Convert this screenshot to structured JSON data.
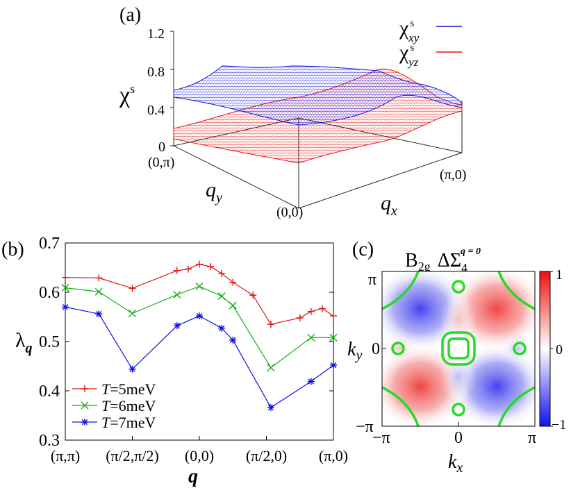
{
  "panel_a": {
    "label": "(a)",
    "z_label": "χ",
    "z_label_sup": "s",
    "z_ticks": [
      "1.2",
      "0.8",
      "0.4",
      "0"
    ],
    "qy_label": "q",
    "qy_sub": "y",
    "qx_label": "q",
    "qx_sub": "x",
    "corner_0pi": "(0,π)",
    "corner_00": "(0,0)",
    "corner_pi0": "(π,0)",
    "legend": [
      {
        "sym": "χ",
        "sup": "s",
        "sub": "xy",
        "color": "#1010e8"
      },
      {
        "sym": "χ",
        "sup": "s",
        "sub": "yz",
        "color": "#f01010"
      }
    ]
  },
  "panel_c": {
    "label": "(c)",
    "title_irrep": "B",
    "title_irrep_sub": "2g",
    "title_delta": "ΔΣ",
    "title_sub": "4",
    "title_sup": "q = 0",
    "y_ticks": [
      "π",
      "0",
      "−π"
    ],
    "x_ticks": [
      "−π",
      "0",
      "π"
    ],
    "xlabel": "k",
    "xlabel_sub": "x",
    "ylabel": "k",
    "ylabel_sub": "y",
    "colorbar_ticks": [
      "1",
      "0",
      "−1"
    ]
  },
  "chart_data": [
    {
      "type": "line",
      "panel": "(b)",
      "title": "",
      "ylabel": "λ",
      "ylabel_sub": "q",
      "xlabel": "q",
      "ylim": [
        0.3,
        0.7
      ],
      "yticks": [
        "0.7",
        "0.6",
        "0.5",
        "0.4",
        "0.3"
      ],
      "xlim": [
        0,
        6
      ],
      "xticks": [
        {
          "label": "(π,π)",
          "x": 0
        },
        {
          "label": "(π/2,π/2)",
          "x": 1.5
        },
        {
          "label": "(0,0)",
          "x": 3
        },
        {
          "label": "(π/2,0)",
          "x": 4.5
        },
        {
          "label": "(π,0)",
          "x": 6
        }
      ],
      "legend_position": "bottom-left",
      "series": [
        {
          "name_prefix": "T",
          "name": "=5meV",
          "color": "#e01010",
          "marker": "+",
          "points": [
            [
              0,
              0.63
            ],
            [
              0.75,
              0.629
            ],
            [
              1.5,
              0.608
            ],
            [
              2.5,
              0.644
            ],
            [
              2.75,
              0.647
            ],
            [
              3,
              0.657
            ],
            [
              3.25,
              0.652
            ],
            [
              3.5,
              0.638
            ],
            [
              3.75,
              0.62
            ],
            [
              4.2,
              0.594
            ],
            [
              4.6,
              0.535
            ],
            [
              5.25,
              0.548
            ],
            [
              5.5,
              0.561
            ],
            [
              5.75,
              0.567
            ],
            [
              6,
              0.552
            ]
          ]
        },
        {
          "name_prefix": "T",
          "name": "=6meV",
          "color": "#10b010",
          "marker": "×",
          "points": [
            [
              0,
              0.609
            ],
            [
              0.75,
              0.601
            ],
            [
              1.5,
              0.557
            ],
            [
              2.5,
              0.595
            ],
            [
              3,
              0.612
            ],
            [
              3.5,
              0.592
            ],
            [
              3.75,
              0.573
            ],
            [
              4.6,
              0.447
            ],
            [
              5.5,
              0.508
            ],
            [
              6,
              0.508
            ]
          ]
        },
        {
          "name_prefix": "T",
          "name": "=7meV",
          "color": "#1010e8",
          "marker": "*",
          "points": [
            [
              0,
              0.57
            ],
            [
              0.75,
              0.556
            ],
            [
              1.5,
              0.444
            ],
            [
              2.5,
              0.532
            ],
            [
              3,
              0.552
            ],
            [
              3.5,
              0.527
            ],
            [
              3.75,
              0.503
            ],
            [
              4.6,
              0.366
            ],
            [
              5.5,
              0.419
            ],
            [
              6,
              0.452
            ]
          ]
        }
      ]
    }
  ]
}
